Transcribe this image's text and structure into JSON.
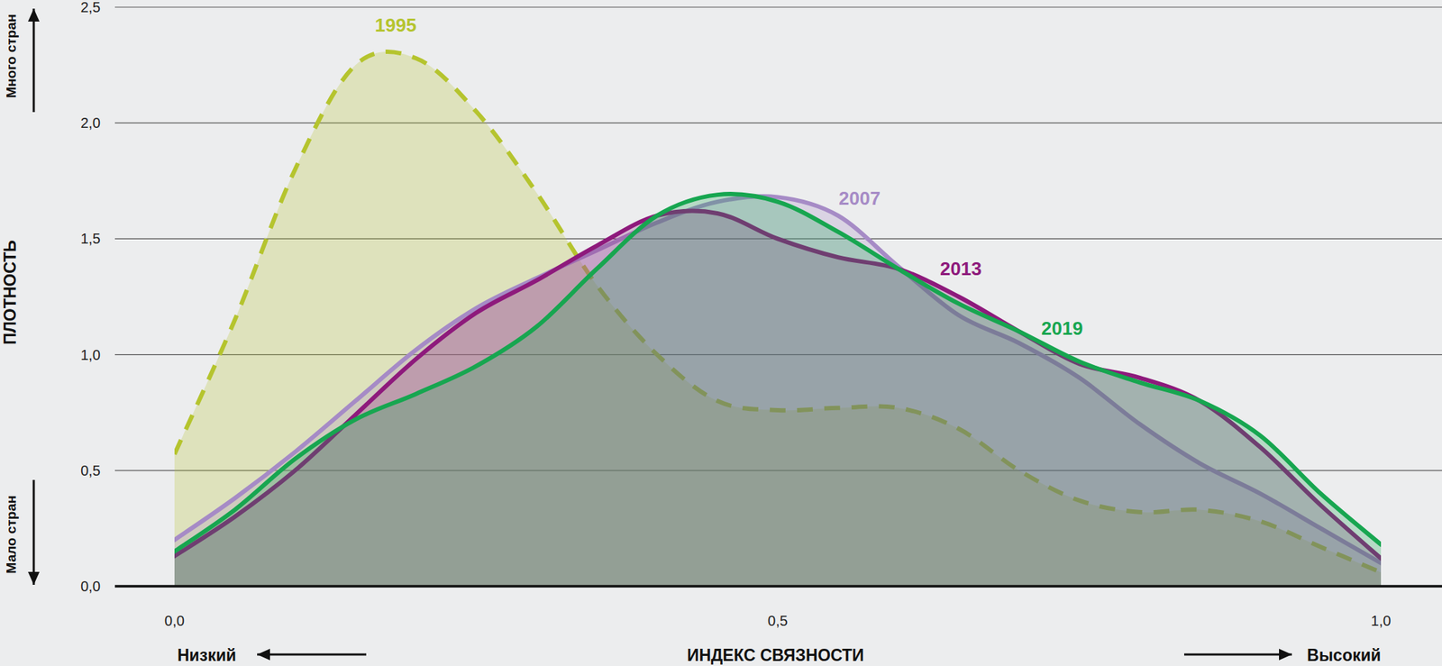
{
  "chart_data": {
    "type": "area",
    "x_label": "ИНДЕКС СВЯЗНОСТИ",
    "y_label": "ПЛОТНОСТЬ",
    "annotations": [
      "Много стран",
      "Мало стран",
      "Низкий",
      "Высокий"
    ],
    "x": [
      0,
      0.05,
      0.1,
      0.15,
      0.2,
      0.25,
      0.3,
      0.35,
      0.4,
      0.45,
      0.5,
      0.55,
      0.6,
      0.65,
      0.7,
      0.75,
      0.8,
      0.85,
      0.9,
      0.95,
      1.0
    ],
    "series": [
      {
        "name": "1995",
        "color": "#b5c42e",
        "line_style": "dashed",
        "values": [
          0.57,
          1.15,
          1.8,
          2.25,
          2.28,
          2.05,
          1.7,
          1.3,
          1.0,
          0.8,
          0.76,
          0.77,
          0.77,
          0.68,
          0.5,
          0.37,
          0.32,
          0.33,
          0.28,
          0.17,
          0.06
        ]
      },
      {
        "name": "2007",
        "color": "#a68bc6",
        "line_style": "solid",
        "values": [
          0.2,
          0.38,
          0.58,
          0.8,
          1.02,
          1.2,
          1.33,
          1.45,
          1.57,
          1.66,
          1.68,
          1.6,
          1.38,
          1.17,
          1.05,
          0.9,
          0.7,
          0.53,
          0.4,
          0.25,
          0.1
        ]
      },
      {
        "name": "2013",
        "color": "#8e1a7c",
        "line_style": "solid",
        "values": [
          0.13,
          0.3,
          0.5,
          0.74,
          0.98,
          1.18,
          1.32,
          1.47,
          1.6,
          1.61,
          1.5,
          1.42,
          1.37,
          1.25,
          1.1,
          0.96,
          0.9,
          0.8,
          0.6,
          0.35,
          0.12
        ]
      },
      {
        "name": "2019",
        "color": "#17a650",
        "line_style": "solid",
        "values": [
          0.15,
          0.33,
          0.55,
          0.72,
          0.83,
          0.95,
          1.12,
          1.37,
          1.6,
          1.69,
          1.66,
          1.53,
          1.37,
          1.22,
          1.1,
          0.97,
          0.88,
          0.8,
          0.65,
          0.4,
          0.18
        ]
      }
    ],
    "xlim": [
      0,
      1
    ],
    "ylim": [
      0,
      2.5
    ],
    "xticks": [
      {
        "value": 0,
        "label": "0,0"
      },
      {
        "value": 0.5,
        "label": "0,5"
      },
      {
        "value": 1,
        "label": "1,0"
      }
    ],
    "yticks": [
      {
        "value": 0,
        "label": "0,0"
      },
      {
        "value": 0.5,
        "label": "0,5"
      },
      {
        "value": 1,
        "label": "1,0"
      },
      {
        "value": 1.5,
        "label": "1,5"
      },
      {
        "value": 2,
        "label": "2,0"
      },
      {
        "value": 2.5,
        "label": "2,5"
      }
    ],
    "grid": true
  }
}
